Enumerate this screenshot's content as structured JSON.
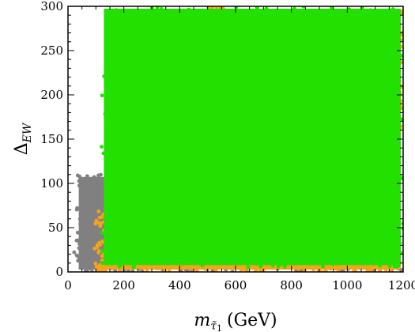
{
  "chart_data": {
    "type": "scatter",
    "title": "",
    "xlabel": {
      "symbol": "m",
      "sub": "τ̃",
      "sub_index": "1",
      "unit": "(GeV)"
    },
    "ylabel": {
      "symbol": "Δ",
      "sub": "EW"
    },
    "xlim": [
      0,
      1200
    ],
    "ylim": [
      0,
      300
    ],
    "x_ticks": [
      0,
      200,
      400,
      600,
      800,
      1000,
      1200
    ],
    "y_ticks": [
      0,
      50,
      100,
      150,
      200,
      250,
      300
    ],
    "x_minor_step": 50,
    "y_minor_step": 10,
    "grid": false,
    "legend": "none",
    "series": [
      {
        "color": "#808080",
        "regions": [
          {
            "x": [
              20,
              120
            ],
            "y": [
              0,
              40
            ]
          },
          {
            "x": [
              30,
              140
            ],
            "y": [
              0,
              110
            ]
          },
          {
            "x": [
              100,
              1200
            ],
            "y": [
              0,
              6
            ]
          }
        ]
      },
      {
        "color": "#f5a21c",
        "regions": [
          {
            "x": [
              95,
              140
            ],
            "y": [
              0,
              70
            ]
          },
          {
            "x": [
              100,
              1200
            ],
            "y": [
              0,
              12
            ]
          },
          {
            "x": [
              1050,
              1200
            ],
            "y": [
              150,
              300
            ]
          },
          {
            "x": [
              500,
              560
            ],
            "y": [
              280,
              300
            ]
          }
        ]
      },
      {
        "color": "#22e100",
        "regions": [
          {
            "x": [
              120,
              1200
            ],
            "y": [
              5,
              300
            ]
          }
        ]
      }
    ]
  }
}
